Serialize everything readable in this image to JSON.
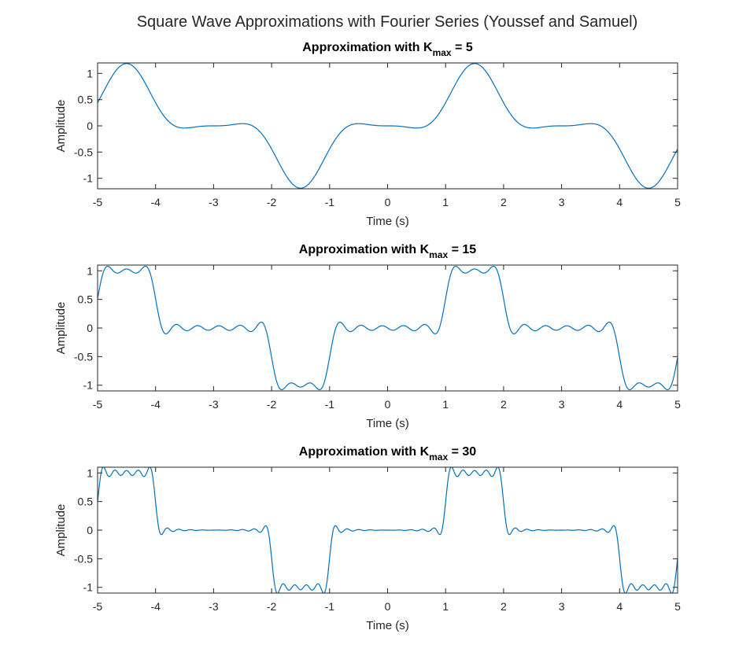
{
  "figure": {
    "suptitle": "Square Wave Approximations with Fourier Series (Youssef and Samuel)"
  },
  "chart_data": [
    {
      "type": "line",
      "title_prefix": "Approximation with K",
      "title_sub": "max",
      "title_suffix": " = 5",
      "xlabel": "Time (s)",
      "ylabel": "Amplitude",
      "xlim": [
        -5,
        5
      ],
      "ylim": [
        -1.2,
        1.2
      ],
      "xticks": [
        -5,
        -4,
        -3,
        -2,
        -1,
        0,
        1,
        2,
        3,
        4,
        5
      ],
      "yticks": [
        -1,
        -0.5,
        0,
        0.5,
        1
      ],
      "kmax": 5,
      "period": 6,
      "duty_start": 1,
      "duty_end": 2,
      "line_color": "#0072BD",
      "grid": false
    },
    {
      "type": "line",
      "title_prefix": "Approximation with K",
      "title_sub": "max",
      "title_suffix": " = 15",
      "xlabel": "Time (s)",
      "ylabel": "Amplitude",
      "xlim": [
        -5,
        5
      ],
      "ylim": [
        -1.1,
        1.1
      ],
      "xticks": [
        -5,
        -4,
        -3,
        -2,
        -1,
        0,
        1,
        2,
        3,
        4,
        5
      ],
      "yticks": [
        -1,
        -0.5,
        0,
        0.5,
        1
      ],
      "kmax": 15,
      "period": 6,
      "duty_start": 1,
      "duty_end": 2,
      "line_color": "#0072BD",
      "grid": false
    },
    {
      "type": "line",
      "title_prefix": "Approximation with K",
      "title_sub": "max",
      "title_suffix": " = 30",
      "xlabel": "Time (s)",
      "ylabel": "Amplitude",
      "xlim": [
        -5,
        5
      ],
      "ylim": [
        -1.1,
        1.1
      ],
      "xticks": [
        -5,
        -4,
        -3,
        -2,
        -1,
        0,
        1,
        2,
        3,
        4,
        5
      ],
      "yticks": [
        -1,
        -0.5,
        0,
        0.5,
        1
      ],
      "kmax": 30,
      "period": 6,
      "duty_start": 1,
      "duty_end": 2,
      "line_color": "#0072BD",
      "grid": false
    }
  ]
}
